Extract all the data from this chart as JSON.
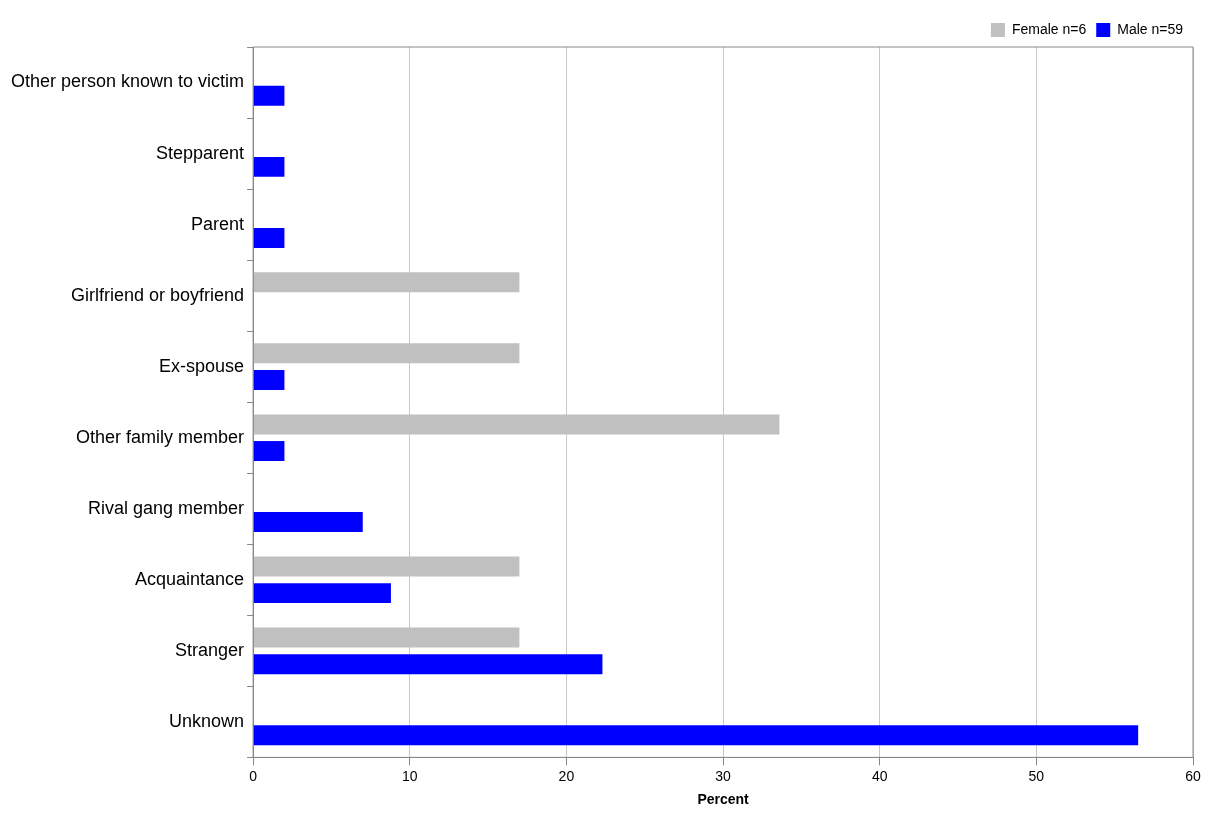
{
  "chart_data": {
    "type": "bar",
    "orientation": "horizontal",
    "xlabel": "Percent",
    "categories": [
      "Other person known to victim",
      "Stepparent",
      "Parent",
      "Girlfriend or boyfriend",
      "Ex-spouse",
      "Other family member",
      "Rival gang member",
      "Acquaintance",
      "Stranger",
      "Unknown"
    ],
    "series": [
      {
        "name": "Female n=6",
        "color": "#c0c0c0",
        "values": [
          null,
          null,
          null,
          17,
          17,
          33.6,
          null,
          17,
          17,
          null
        ]
      },
      {
        "name": "Male n=59",
        "color": "#0000ff",
        "values": [
          2,
          2,
          2,
          null,
          2,
          2,
          7,
          8.8,
          22.3,
          56.5
        ]
      }
    ],
    "xlim": [
      0,
      60
    ],
    "xticks": [
      0,
      10,
      20,
      30,
      40,
      50,
      60
    ],
    "grid": "x",
    "legend": "top right"
  }
}
